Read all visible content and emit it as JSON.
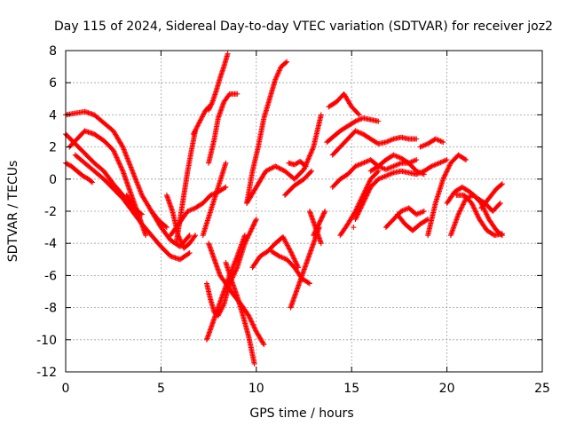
{
  "chart_data": {
    "type": "scatter",
    "title": "Day 115 of 2024, Sidereal Day-to-day VTEC variation (SDTVAR) for receiver joz2",
    "xlabel": "GPS time / hours",
    "ylabel": "SDTVAR / TECUs",
    "xlim": [
      0,
      25
    ],
    "ylim": [
      -12,
      8
    ],
    "xticks": [
      0,
      5,
      10,
      15,
      20,
      25
    ],
    "yticks": [
      -12,
      -10,
      -8,
      -6,
      -4,
      -2,
      0,
      2,
      4,
      6,
      8
    ],
    "grid": true,
    "marker": "+",
    "color": "#ff0000",
    "series": [
      {
        "x": [
          0.0,
          0.5,
          1.0,
          1.5,
          2.0,
          2.5,
          3.0,
          3.5,
          4.0,
          4.5,
          5.0,
          5.5,
          6.0,
          6.5
        ],
        "y": [
          4.0,
          4.1,
          4.2,
          4.0,
          3.5,
          3.0,
          2.0,
          0.5,
          -1.0,
          -2.0,
          -3.0,
          -3.8,
          -4.2,
          -3.5
        ]
      },
      {
        "x": [
          0.0,
          0.5,
          1.0,
          1.5,
          2.0,
          2.5,
          3.0,
          3.5,
          4.0
        ],
        "y": [
          2.8,
          2.2,
          1.6,
          1.0,
          0.5,
          -0.3,
          -1.0,
          -1.7,
          -2.2
        ]
      },
      {
        "x": [
          0.0,
          0.3,
          0.6,
          0.9,
          1.2,
          1.4
        ],
        "y": [
          1.0,
          0.8,
          0.5,
          0.2,
          0.0,
          -0.2
        ]
      },
      {
        "x": [
          0.2,
          0.6,
          1.0,
          1.5,
          2.0,
          2.5,
          3.0,
          3.3,
          3.6,
          3.9,
          4.2
        ],
        "y": [
          2.0,
          2.5,
          3.0,
          2.8,
          2.4,
          1.8,
          0.5,
          -0.5,
          -1.5,
          -2.5,
          -3.5
        ]
      },
      {
        "x": [
          0.5,
          1.0,
          1.5,
          2.0,
          2.5,
          3.0,
          3.5,
          4.0,
          4.5,
          5.0,
          5.5,
          6.0,
          6.5
        ],
        "y": [
          1.5,
          1.0,
          0.5,
          0.0,
          -0.6,
          -1.2,
          -2.0,
          -2.8,
          -3.5,
          -4.2,
          -4.8,
          -5.0,
          -4.6
        ]
      },
      {
        "x": [
          3.2,
          3.6,
          3.9
        ],
        "y": [
          -1.0,
          -1.8,
          -2.5
        ]
      },
      {
        "x": [
          4.5,
          4.9,
          5.3
        ],
        "y": [
          -2.0,
          -2.6,
          -3.0
        ]
      },
      {
        "x": [
          5.3,
          5.6,
          5.9,
          6.2,
          6.5,
          6.8
        ],
        "y": [
          -1.0,
          -2.0,
          -3.5,
          -4.3,
          -4.0,
          -3.5
        ]
      },
      {
        "x": [
          5.5,
          5.8,
          6.1,
          6.4,
          6.8,
          7.2,
          7.6,
          8.0,
          8.4
        ],
        "y": [
          -3.5,
          -3.0,
          -2.5,
          -2.0,
          -1.8,
          -1.5,
          -1.0,
          -0.8,
          -0.5
        ]
      },
      {
        "x": [
          5.8,
          6.0,
          6.2,
          6.4,
          6.6,
          6.8
        ],
        "y": [
          -4.0,
          -2.5,
          -1.0,
          0.5,
          1.8,
          3.0
        ]
      },
      {
        "x": [
          6.7,
          7.0,
          7.3,
          7.5
        ],
        "y": [
          2.8,
          3.5,
          4.2,
          4.5
        ]
      },
      {
        "x": [
          7.5,
          7.7,
          7.9,
          8.1,
          8.3,
          8.5
        ],
        "y": [
          4.3,
          4.8,
          5.5,
          6.3,
          7.0,
          7.8
        ]
      },
      {
        "x": [
          7.2,
          7.6,
          8.0,
          8.4
        ],
        "y": [
          -3.5,
          -2.0,
          -0.5,
          1.0
        ]
      },
      {
        "x": [
          7.5,
          7.8,
          8.0,
          8.3,
          8.6,
          9.0
        ],
        "y": [
          1.0,
          2.5,
          3.8,
          4.8,
          5.3,
          5.3
        ]
      },
      {
        "x": [
          7.4,
          7.6,
          7.8,
          8.0,
          8.3,
          8.6,
          9.0,
          9.4,
          9.8,
          10.0
        ],
        "y": [
          -6.5,
          -7.5,
          -8.3,
          -8.5,
          -7.8,
          -6.5,
          -5.5,
          -4.0,
          -3.0,
          -2.5
        ]
      },
      {
        "x": [
          8.4,
          8.7,
          9.0,
          9.3,
          9.6,
          9.9
        ],
        "y": [
          -5.2,
          -6.3,
          -7.3,
          -8.5,
          -9.8,
          -11.5
        ]
      },
      {
        "x": [
          7.4,
          7.7,
          8.0,
          8.3,
          8.6,
          9.0,
          9.4
        ],
        "y": [
          -10.0,
          -9.0,
          -8.0,
          -7.0,
          -6.0,
          -4.8,
          -3.5
        ]
      },
      {
        "x": [
          7.5,
          7.8,
          8.1,
          8.4,
          8.8,
          9.2,
          9.6,
          10.0,
          10.4
        ],
        "y": [
          -4.0,
          -5.0,
          -6.0,
          -6.5,
          -7.2,
          -7.8,
          -8.5,
          -9.5,
          -10.3
        ]
      },
      {
        "x": [
          9.5,
          9.8,
          10.1,
          10.4,
          10.7,
          11.0,
          11.3,
          11.6
        ],
        "y": [
          -1.5,
          0.5,
          2.0,
          3.8,
          5.0,
          6.2,
          7.0,
          7.3
        ]
      },
      {
        "x": [
          9.5,
          10.0,
          10.5,
          11.0,
          11.5,
          12.0,
          12.5,
          13.0,
          13.4
        ],
        "y": [
          -1.5,
          -0.5,
          0.5,
          0.8,
          0.5,
          0.0,
          0.6,
          2.0,
          4.0
        ]
      },
      {
        "x": [
          9.8,
          10.2,
          10.6,
          11.0,
          11.4,
          11.8,
          12.2
        ],
        "y": [
          -5.5,
          -4.8,
          -4.5,
          -4.0,
          -3.6,
          -4.5,
          -5.5
        ]
      },
      {
        "x": [
          10.8,
          11.2,
          11.6,
          12.0,
          12.4,
          12.8
        ],
        "y": [
          -4.5,
          -4.8,
          -5.0,
          -5.5,
          -6.2,
          -6.5
        ]
      },
      {
        "x": [
          11.5,
          12.0,
          12.5,
          12.9
        ],
        "y": [
          -1.0,
          -0.4,
          0.0,
          0.5
        ]
      },
      {
        "x": [
          11.7,
          12.0,
          12.3,
          12.6
        ],
        "y": [
          1.0,
          0.9,
          1.1,
          0.8
        ]
      },
      {
        "x": [
          11.8,
          12.1,
          12.4,
          12.7,
          13.0,
          13.3
        ],
        "y": [
          -8.0,
          -7.0,
          -6.0,
          -5.0,
          -4.0,
          -3.0
        ]
      },
      {
        "x": [
          12.8,
          13.1,
          13.4
        ],
        "y": [
          -2.0,
          -3.0,
          -4.0
        ]
      },
      {
        "x": [
          13.0,
          13.2,
          13.4,
          13.6
        ],
        "y": [
          -3.5,
          -3.0,
          -2.5,
          -2.0
        ]
      },
      {
        "x": [
          13.8,
          14.2,
          14.6,
          15.0,
          15.4
        ],
        "y": [
          4.5,
          4.8,
          5.3,
          4.5,
          4.0
        ]
      },
      {
        "x": [
          13.7,
          14.0,
          14.4,
          14.8,
          15.2,
          15.6,
          16.0,
          16.4
        ],
        "y": [
          2.3,
          2.6,
          3.0,
          3.3,
          3.6,
          3.8,
          3.7,
          3.6
        ]
      },
      {
        "x": [
          14.0,
          14.4,
          14.8,
          15.2,
          15.6,
          16.0,
          16.4,
          16.8,
          17.2,
          17.6,
          18.0,
          18.4
        ],
        "y": [
          1.5,
          2.0,
          2.5,
          3.0,
          2.8,
          2.5,
          2.2,
          2.3,
          2.5,
          2.6,
          2.5,
          2.5
        ]
      },
      {
        "x": [
          14.0,
          14.4,
          14.8,
          15.2,
          15.6,
          16.0,
          16.4,
          16.8,
          17.2,
          17.6,
          18.0,
          18.4
        ],
        "y": [
          -0.5,
          0.0,
          0.3,
          0.8,
          1.0,
          1.2,
          0.8,
          0.6,
          0.8,
          1.0,
          1.0,
          1.2
        ]
      },
      {
        "x": [
          14.4,
          14.8,
          15.2,
          15.6,
          16.0,
          16.4
        ],
        "y": [
          -3.5,
          -2.8,
          -2.0,
          -1.0,
          0.0,
          0.5
        ]
      },
      {
        "x": [
          15.2,
          15.6,
          16.0,
          16.4,
          16.8,
          17.2,
          17.6,
          18.0,
          18.4,
          18.8,
          19.2,
          19.6,
          20.0
        ],
        "y": [
          -2.5,
          -1.5,
          -0.5,
          0.0,
          0.2,
          0.4,
          0.5,
          0.4,
          0.3,
          0.5,
          0.8,
          1.0,
          1.2
        ]
      },
      {
        "x": [
          16.0,
          16.4,
          16.8,
          17.2,
          17.6,
          18.0,
          18.4,
          18.8
        ],
        "y": [
          0.5,
          0.8,
          1.2,
          1.5,
          1.3,
          1.0,
          0.5,
          0.3
        ]
      },
      {
        "x": [
          16.8,
          17.2,
          17.6,
          18.0,
          18.4,
          18.8
        ],
        "y": [
          -3.0,
          -2.5,
          -2.0,
          -1.8,
          -2.2,
          -2.0
        ]
      },
      {
        "x": [
          17.4,
          17.8,
          18.2,
          18.6,
          19.0
        ],
        "y": [
          -2.2,
          -2.8,
          -3.2,
          -2.8,
          -2.5
        ]
      },
      {
        "x": [
          18.6,
          19.0,
          19.4,
          19.8
        ],
        "y": [
          2.0,
          2.2,
          2.5,
          2.3
        ]
      },
      {
        "x": [
          19.0,
          19.4,
          19.8,
          20.2,
          20.6,
          21.0
        ],
        "y": [
          -3.5,
          -1.5,
          0.0,
          1.0,
          1.5,
          1.2
        ]
      },
      {
        "x": [
          20.0,
          20.4,
          20.8,
          21.2,
          21.6,
          22.0,
          22.4,
          22.8
        ],
        "y": [
          -1.5,
          -0.8,
          -0.5,
          -0.8,
          -1.2,
          -1.5,
          -2.0,
          -1.5
        ]
      },
      {
        "x": [
          20.2,
          20.6,
          21.0,
          21.4,
          21.8,
          22.2,
          22.6,
          22.9
        ],
        "y": [
          -3.5,
          -2.2,
          -1.2,
          -1.0,
          -1.5,
          -2.5,
          -3.2,
          -3.5
        ]
      },
      {
        "x": [
          20.5,
          20.9,
          21.3,
          21.7,
          22.1,
          22.5,
          22.9
        ],
        "y": [
          -1.0,
          -1.0,
          -1.5,
          -2.5,
          -3.2,
          -3.5,
          -3.4
        ]
      },
      {
        "x": [
          21.8,
          22.2,
          22.6,
          22.9
        ],
        "y": [
          -1.8,
          -1.2,
          -0.6,
          -0.3
        ]
      },
      {
        "x": [
          15.1
        ],
        "y": [
          -3.0
        ]
      }
    ]
  }
}
